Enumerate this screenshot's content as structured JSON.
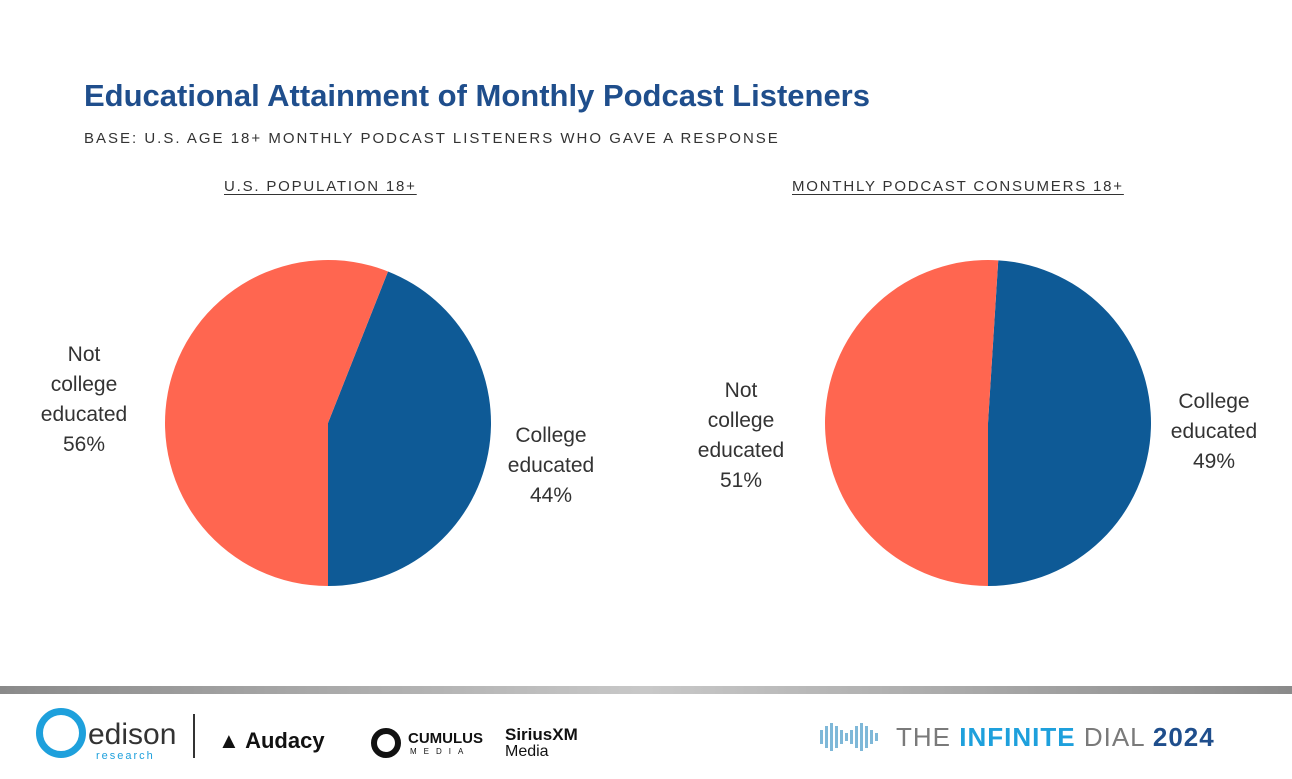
{
  "header": {
    "title": "Educational Attainment of Monthly Podcast Listeners",
    "subtitle": "BASE: U.S. AGE 18+ MONTHLY PODCAST LISTENERS WHO GAVE A RESPONSE"
  },
  "chart_data": [
    {
      "type": "pie",
      "title": "U.S. POPULATION 18+",
      "slices": [
        {
          "label": "College educated",
          "value": 44,
          "value_label": "44%",
          "color": "#0e5a96"
        },
        {
          "label": "Not college educated",
          "value": 56,
          "value_label": "56%",
          "color": "#ff6650"
        }
      ]
    },
    {
      "type": "pie",
      "title": "MONTHLY PODCAST CONSUMERS 18+",
      "slices": [
        {
          "label": "College educated",
          "value": 49,
          "value_label": "49%",
          "color": "#0e5a96"
        },
        {
          "label": "Not college educated",
          "value": 51,
          "value_label": "51%",
          "color": "#ff6650"
        }
      ]
    }
  ],
  "labels": {
    "left_not": [
      "Not",
      "college",
      "educated",
      "56%"
    ],
    "left_college": [
      "College",
      "educated",
      "44%"
    ],
    "right_not": [
      "Not",
      "college",
      "educated",
      "51%"
    ],
    "right_college": [
      "College",
      "educated",
      "49%"
    ]
  },
  "footer": {
    "edison": "edison",
    "edison_sub": "research",
    "audacy": "Audacy",
    "cumulus": "CUMULUS",
    "cumulus_sub": "MEDIA",
    "sirius": "SiriusXM",
    "sirius_media": "Media",
    "dial_the": "THE",
    "dial_infinite": "INFINITE",
    "dial_dial": "DIAL",
    "dial_year": "2024"
  }
}
